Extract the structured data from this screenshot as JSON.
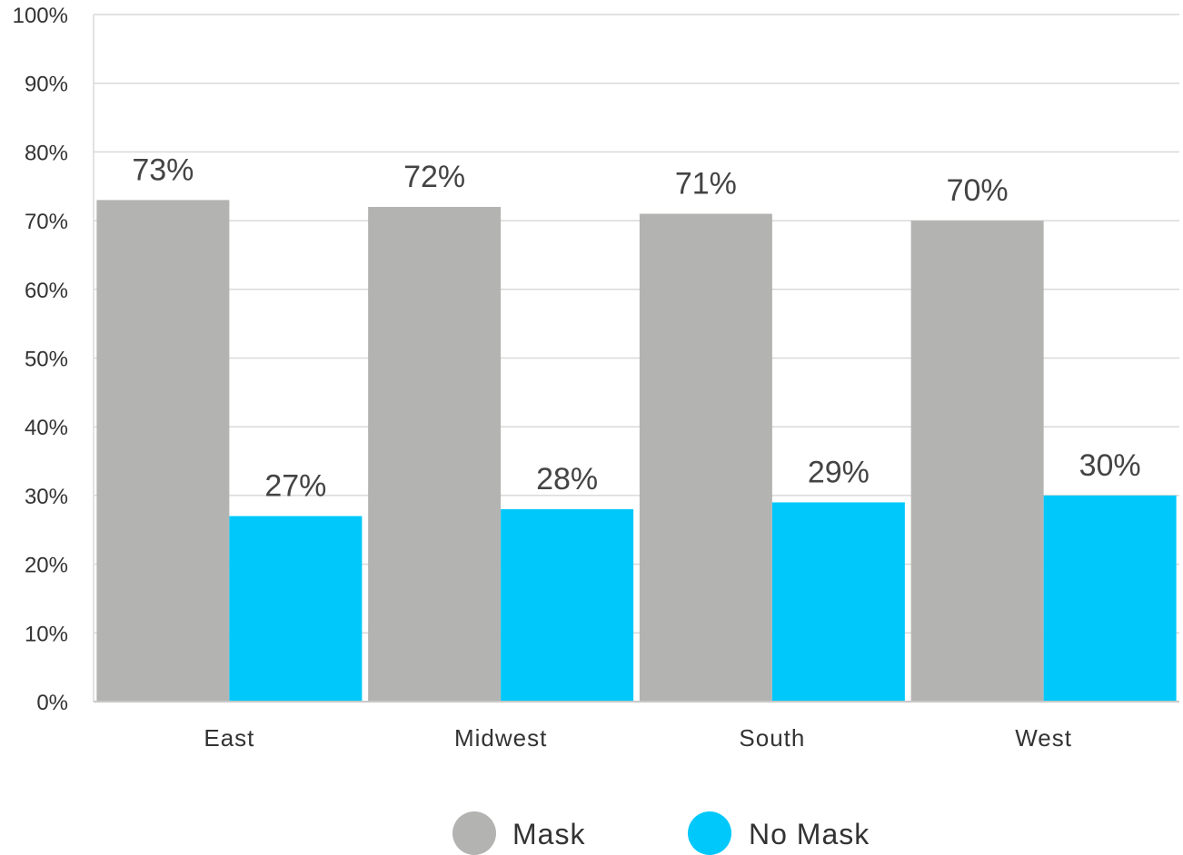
{
  "chart_data": {
    "type": "bar",
    "title": "",
    "xlabel": "",
    "ylabel": "",
    "categories": [
      "East",
      "Midwest",
      "South",
      "West"
    ],
    "series": [
      {
        "name": "Mask",
        "color": "#b3b4b2",
        "values": [
          73,
          72,
          71,
          70
        ],
        "labels": [
          "73%",
          "72%",
          "71%",
          "70%"
        ]
      },
      {
        "name": "No Mask",
        "color": "#00c8fb",
        "values": [
          27,
          28,
          29,
          30
        ],
        "labels": [
          "27%",
          "28%",
          "29%",
          "30%"
        ]
      }
    ],
    "ylim": [
      0,
      100
    ],
    "yticks": [
      "0%",
      "10%",
      "20%",
      "30%",
      "40%",
      "50%",
      "60%",
      "70%",
      "80%",
      "90%",
      "100%"
    ],
    "grid": true,
    "legend_position": "bottom-center"
  }
}
